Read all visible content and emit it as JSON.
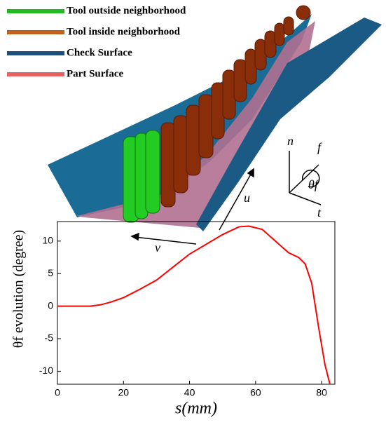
{
  "illustration": {
    "legend": [
      {
        "label": "Tool outside neighborhood",
        "color": "#22bb22"
      },
      {
        "label": "Tool inside neighborhood",
        "color": "#c0601a"
      },
      {
        "label": "Check Surface",
        "color": "#1c4f7a"
      },
      {
        "label": "Part Surface",
        "color": "#e86060"
      }
    ],
    "labels": {
      "n": "n",
      "f": "f",
      "t": "t",
      "theta": "θf",
      "u": "u",
      "v": "v"
    }
  },
  "chart_data": {
    "type": "line",
    "xlabel": "s(mm)",
    "ylabel": "θf evolution (degree)",
    "x": [
      0,
      5,
      10,
      13,
      16,
      20,
      25,
      30,
      35,
      40,
      45,
      50,
      55,
      58,
      62,
      66,
      70,
      73,
      75,
      77,
      79,
      81,
      82.5
    ],
    "series": [
      {
        "color": "#ff0000",
        "values": [
          0,
          0,
          0,
          0.2,
          0.6,
          1.3,
          2.6,
          4,
          6,
          8,
          9.5,
          11,
          12.2,
          12.3,
          11.8,
          10,
          8.2,
          7.5,
          6.5,
          3.5,
          -3,
          -9,
          -12
        ]
      }
    ],
    "xlim": [
      0,
      84
    ],
    "ylim": [
      -12,
      13
    ],
    "xticks": [
      0,
      20,
      40,
      60,
      80
    ],
    "yticks": [
      -10,
      -5,
      0,
      5,
      10
    ]
  }
}
